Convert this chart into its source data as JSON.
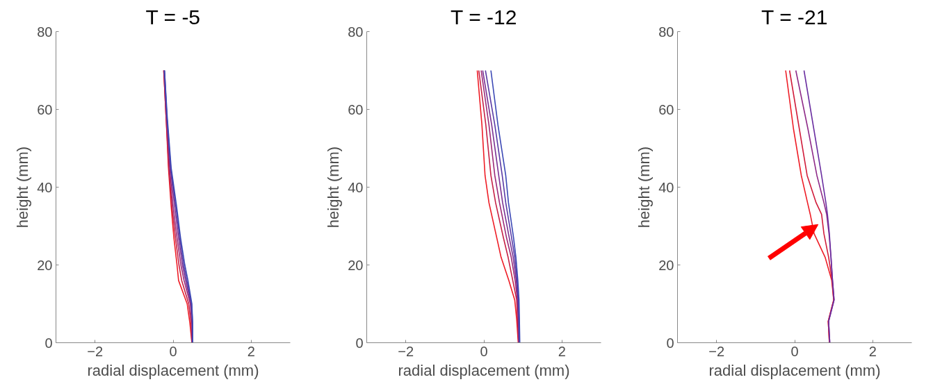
{
  "chart_data": [
    {
      "type": "line",
      "title": "T = -5",
      "xlabel": "radial displacement (mm)",
      "ylabel": "height (mm)",
      "xlim": [
        -3,
        3
      ],
      "xticks": [
        -2,
        0,
        2
      ],
      "ylim": [
        0,
        80
      ],
      "yticks": [
        0,
        20,
        40,
        60,
        80
      ],
      "grid": false,
      "line_style": "solid",
      "series": [
        {
          "color": "#ee1c25",
          "x": [
            0.48,
            0.43,
            0.36,
            0.14,
            0.1,
            0.02,
            -0.05,
            -0.12,
            -0.18,
            -0.24
          ],
          "values": [
            0,
            5,
            10,
            16,
            20,
            27,
            35,
            45,
            58,
            70
          ]
        },
        {
          "color": "#c52045",
          "x": [
            0.48,
            0.46,
            0.4,
            0.22,
            0.15,
            0.06,
            -0.03,
            -0.11,
            -0.18,
            -0.24
          ],
          "values": [
            0,
            5,
            10,
            16,
            20,
            27,
            35,
            45,
            58,
            70
          ]
        },
        {
          "color": "#9b2a78",
          "x": [
            0.49,
            0.48,
            0.44,
            0.28,
            0.2,
            0.1,
            0.0,
            -0.09,
            -0.17,
            -0.23
          ],
          "values": [
            0,
            5,
            10,
            16,
            20,
            27,
            35,
            45,
            58,
            70
          ]
        },
        {
          "color": "#7a3192",
          "x": [
            0.49,
            0.49,
            0.46,
            0.32,
            0.24,
            0.14,
            0.04,
            -0.07,
            -0.16,
            -0.23
          ],
          "values": [
            0,
            5,
            10,
            16,
            20,
            27,
            35,
            45,
            58,
            70
          ]
        },
        {
          "color": "#5a3aa5",
          "x": [
            0.5,
            0.5,
            0.47,
            0.35,
            0.27,
            0.17,
            0.07,
            -0.06,
            -0.16,
            -0.22
          ],
          "values": [
            0,
            5,
            10,
            16,
            20,
            27,
            35,
            45,
            58,
            70
          ]
        },
        {
          "color": "#3b48b5",
          "x": [
            0.5,
            0.5,
            0.48,
            0.38,
            0.3,
            0.19,
            0.09,
            -0.05,
            -0.15,
            -0.22
          ],
          "values": [
            0,
            5,
            10,
            16,
            20,
            27,
            35,
            45,
            58,
            70
          ]
        }
      ]
    },
    {
      "type": "line",
      "title": "T = -12",
      "xlabel": "radial displacement (mm)",
      "ylabel": "height (mm)",
      "xlim": [
        -3,
        3
      ],
      "xticks": [
        -2,
        0,
        2
      ],
      "ylim": [
        0,
        80
      ],
      "yticks": [
        0,
        20,
        40,
        60,
        80
      ],
      "grid": false,
      "line_style": "solid",
      "series": [
        {
          "color": "#ee1c25",
          "x": [
            0.88,
            0.84,
            0.79,
            0.64,
            0.44,
            0.33,
            0.13,
            0.03,
            -0.05,
            -0.17
          ],
          "values": [
            0,
            6,
            11,
            16,
            22,
            27,
            36,
            43,
            56,
            70
          ]
        },
        {
          "color": "#c52045",
          "x": [
            0.89,
            0.86,
            0.84,
            0.74,
            0.62,
            0.5,
            0.3,
            0.18,
            0.05,
            -0.13
          ],
          "values": [
            0,
            6,
            11,
            16,
            22,
            27,
            36,
            43,
            56,
            70
          ]
        },
        {
          "color": "#9b2a78",
          "x": [
            0.9,
            0.88,
            0.86,
            0.8,
            0.7,
            0.58,
            0.4,
            0.28,
            0.13,
            -0.07
          ],
          "values": [
            0,
            6,
            11,
            16,
            22,
            27,
            36,
            43,
            56,
            70
          ]
        },
        {
          "color": "#7a3192",
          "x": [
            0.9,
            0.89,
            0.87,
            0.83,
            0.75,
            0.65,
            0.48,
            0.38,
            0.2,
            -0.03
          ],
          "values": [
            0,
            6,
            11,
            16,
            22,
            27,
            36,
            43,
            56,
            70
          ]
        },
        {
          "color": "#5a3aa5",
          "x": [
            0.91,
            0.9,
            0.88,
            0.85,
            0.79,
            0.71,
            0.56,
            0.47,
            0.28,
            0.04
          ],
          "values": [
            0,
            6,
            11,
            16,
            22,
            27,
            36,
            43,
            56,
            70
          ]
        },
        {
          "color": "#3b48b5",
          "x": [
            0.92,
            0.91,
            0.9,
            0.87,
            0.82,
            0.76,
            0.63,
            0.56,
            0.36,
            0.18
          ],
          "values": [
            0,
            6,
            11,
            16,
            22,
            27,
            36,
            43,
            56,
            70
          ]
        }
      ]
    },
    {
      "type": "line",
      "title": "T = -21",
      "xlabel": "radial displacement (mm)",
      "ylabel": "height (mm)",
      "xlim": [
        -3,
        3
      ],
      "xticks": [
        -2,
        0,
        2
      ],
      "ylim": [
        0,
        80
      ],
      "yticks": [
        0,
        20,
        40,
        60,
        80
      ],
      "grid": false,
      "line_style": "solid",
      "series": [
        {
          "color": "#ee1c25",
          "x": [
            0.89,
            0.86,
            1.0,
            0.95,
            0.78,
            0.5,
            0.4,
            0.33,
            0.17,
            -0.03,
            -0.23
          ],
          "values": [
            0,
            5.5,
            11,
            16,
            22,
            28,
            33,
            36,
            43,
            55,
            70
          ]
        },
        {
          "color": "#d01c3a",
          "x": [
            0.89,
            0.86,
            1.0,
            0.96,
            0.87,
            0.75,
            0.69,
            0.55,
            0.32,
            0.12,
            -0.13
          ],
          "values": [
            0,
            5.5,
            11,
            16,
            22,
            28,
            33,
            36,
            43,
            55,
            70
          ]
        },
        {
          "color": "#8e2a88",
          "x": [
            0.9,
            0.87,
            1.01,
            0.97,
            0.93,
            0.88,
            0.82,
            0.75,
            0.57,
            0.34,
            0.03
          ],
          "values": [
            0,
            5.5,
            11,
            16,
            22,
            28,
            33,
            36,
            43,
            55,
            70
          ]
        },
        {
          "color": "#6a2ea0",
          "x": [
            0.9,
            0.87,
            1.01,
            0.97,
            0.93,
            0.89,
            0.84,
            0.8,
            0.69,
            0.49,
            0.24
          ],
          "values": [
            0,
            5.5,
            11,
            16,
            22,
            28,
            33,
            36,
            43,
            55,
            70
          ]
        }
      ]
    }
  ]
}
